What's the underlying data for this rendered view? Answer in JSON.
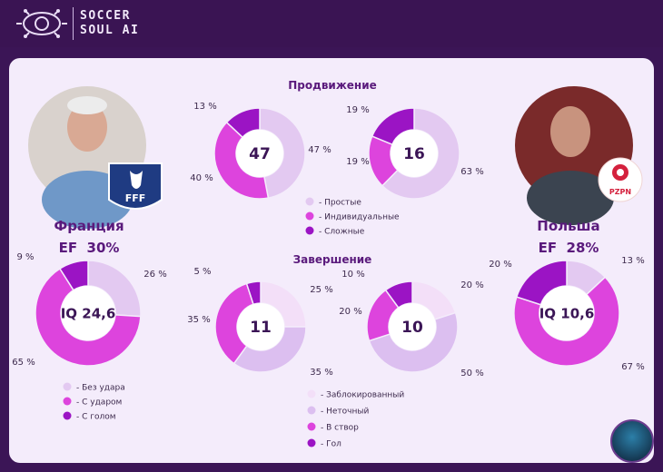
{
  "brand": {
    "line1": "SOCCER",
    "line2": "SOUL AI"
  },
  "colors": {
    "simple": "#e3c9f1",
    "individual": "#dd44dd",
    "complex": "#9b14c4",
    "blocked": "#f3dff8",
    "inaccurate": "#dcbff0"
  },
  "teams": [
    {
      "name": "Франция",
      "ef": "EF  30%",
      "badge": "FFF"
    },
    {
      "name": "Польша",
      "ef": "EF  28%",
      "badge": "PZPN"
    }
  ],
  "section_progress": {
    "title": "Продвижение"
  },
  "section_finish": {
    "title": "Завершение"
  },
  "chart_data": [
    {
      "type": "pie",
      "id": "progress-france",
      "center_label": "47",
      "slices": [
        {
          "category": "Простые",
          "value": 47,
          "label": "47 %"
        },
        {
          "category": "Индивидуальные",
          "value": 40,
          "label": "40 %"
        },
        {
          "category": "Сложные",
          "value": 13,
          "label": "13 %"
        }
      ]
    },
    {
      "type": "pie",
      "id": "progress-poland",
      "center_label": "16",
      "slices": [
        {
          "category": "Простые",
          "value": 63,
          "label": "63 %"
        },
        {
          "category": "Индивидуальные",
          "value": 19,
          "label": "19 %"
        },
        {
          "category": "Сложные",
          "value": 19,
          "label": "19 %"
        }
      ]
    },
    {
      "type": "pie",
      "id": "iq-france",
      "center_label": "IQ 24,6",
      "slices": [
        {
          "category": "Без удара",
          "value": 26,
          "label": "26 %"
        },
        {
          "category": "С ударом",
          "value": 65,
          "label": "65 %"
        },
        {
          "category": "С голом",
          "value": 9,
          "label": "9 %"
        }
      ]
    },
    {
      "type": "pie",
      "id": "iq-poland",
      "center_label": "IQ 10,6",
      "slices": [
        {
          "category": "Без удара",
          "value": 13,
          "label": "13 %"
        },
        {
          "category": "С ударом",
          "value": 67,
          "label": "67 %"
        },
        {
          "category": "С голом",
          "value": 20,
          "label": "20 %"
        }
      ]
    },
    {
      "type": "pie",
      "id": "finish-france",
      "center_label": "11",
      "slices": [
        {
          "category": "Заблокированный",
          "value": 25,
          "label": "25 %"
        },
        {
          "category": "Неточный",
          "value": 35,
          "label": "35 %"
        },
        {
          "category": "В створ",
          "value": 35,
          "label": "35 %"
        },
        {
          "category": "Гол",
          "value": 5,
          "label": "5 %"
        }
      ]
    },
    {
      "type": "pie",
      "id": "finish-poland",
      "center_label": "10",
      "slices": [
        {
          "category": "Заблокированный",
          "value": 20,
          "label": "20 %"
        },
        {
          "category": "Неточный",
          "value": 50,
          "label": "50 %"
        },
        {
          "category": "В створ",
          "value": 20,
          "label": "20 %"
        },
        {
          "category": "Гол",
          "value": 10,
          "label": "10 %"
        }
      ]
    }
  ],
  "legends": {
    "progress": [
      "- Простые",
      "- Индивидуальные",
      "- Сложные"
    ],
    "iq": [
      "- Без удара",
      "- С ударом",
      "- С голом"
    ],
    "finish": [
      "- Заблокированный",
      "- Неточный",
      "- В створ",
      "- Гол"
    ]
  }
}
